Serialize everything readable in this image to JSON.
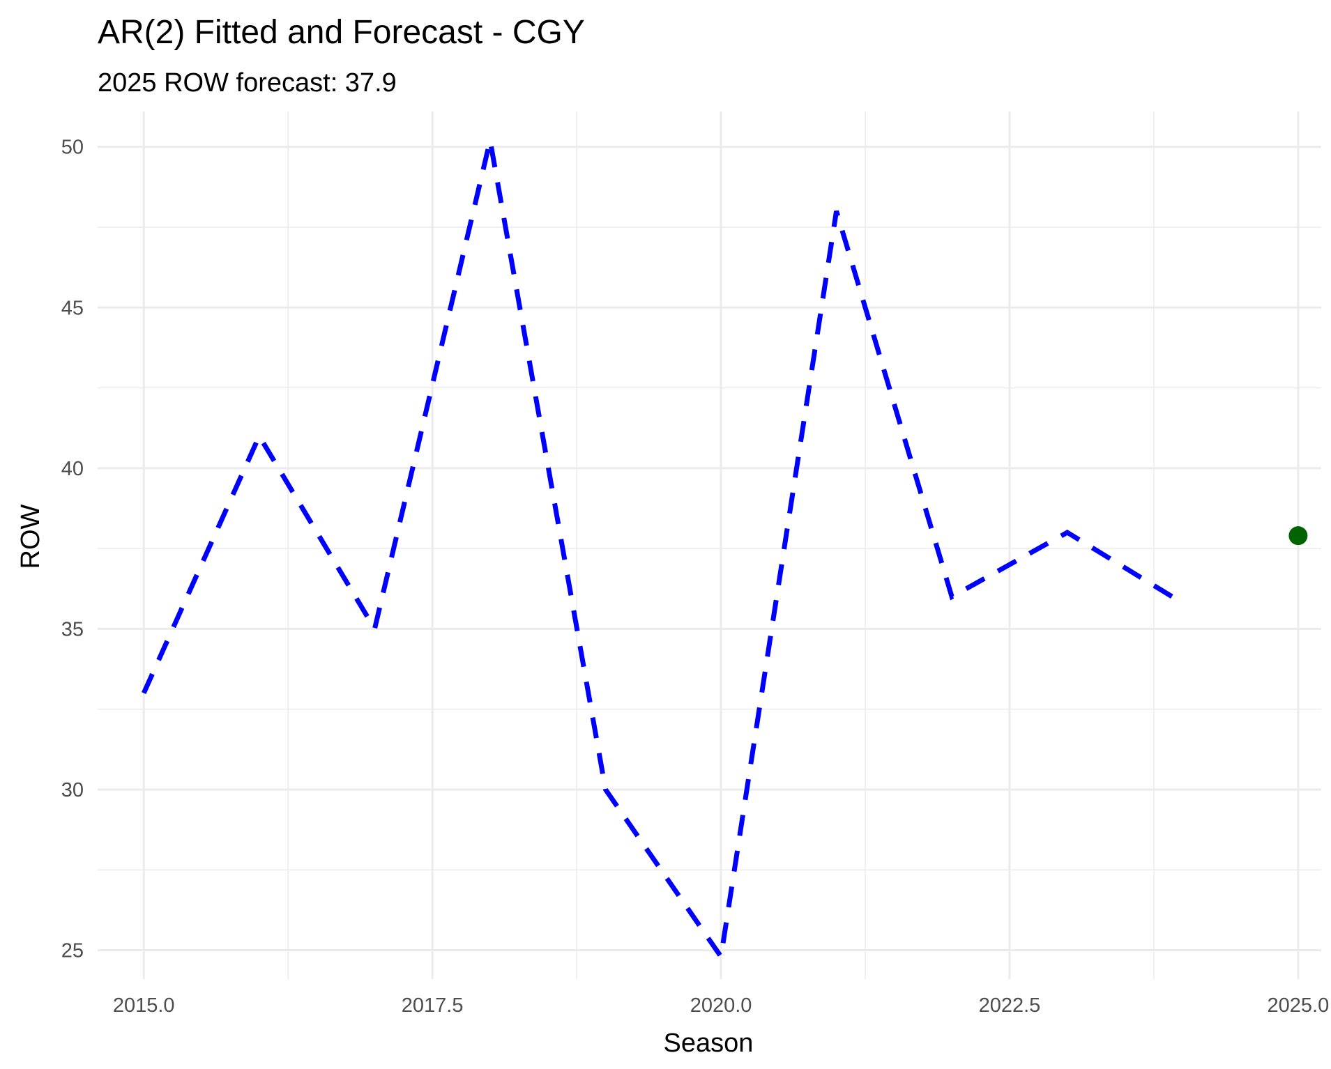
{
  "chart_data": {
    "type": "line",
    "title": "AR(2) Fitted and Forecast - CGY",
    "subtitle": "2025 ROW forecast: 37.9",
    "xlabel": "Season",
    "ylabel": "ROW",
    "xlim": [
      2014.6,
      2025.2
    ],
    "ylim": [
      24.1,
      51.1
    ],
    "x_ticks": [
      2015.0,
      2017.5,
      2020.0,
      2022.5,
      2025.0
    ],
    "x_tick_labels": [
      "2015.0",
      "2017.5",
      "2020.0",
      "2022.5",
      "2025.0"
    ],
    "x_minor_ticks": [
      2016.25,
      2018.75,
      2021.25,
      2023.75
    ],
    "y_ticks": [
      25,
      30,
      35,
      40,
      45,
      50
    ],
    "y_tick_labels": [
      "25",
      "30",
      "35",
      "40",
      "45",
      "50"
    ],
    "y_minor_ticks": [
      27.5,
      32.5,
      37.5,
      42.5,
      47.5
    ],
    "grid": true,
    "legend": "none",
    "series": [
      {
        "style": "dashed",
        "color": "#0000ff",
        "x": [
          2015,
          2016,
          2017,
          2018,
          2019,
          2020,
          2021,
          2022,
          2023,
          2024
        ],
        "y": [
          33,
          41,
          35,
          50.2,
          30,
          24.8,
          48,
          36,
          38,
          35.8
        ]
      },
      {
        "style": "point",
        "color": "#006400",
        "x": [
          2025
        ],
        "y": [
          37.9
        ]
      }
    ]
  }
}
